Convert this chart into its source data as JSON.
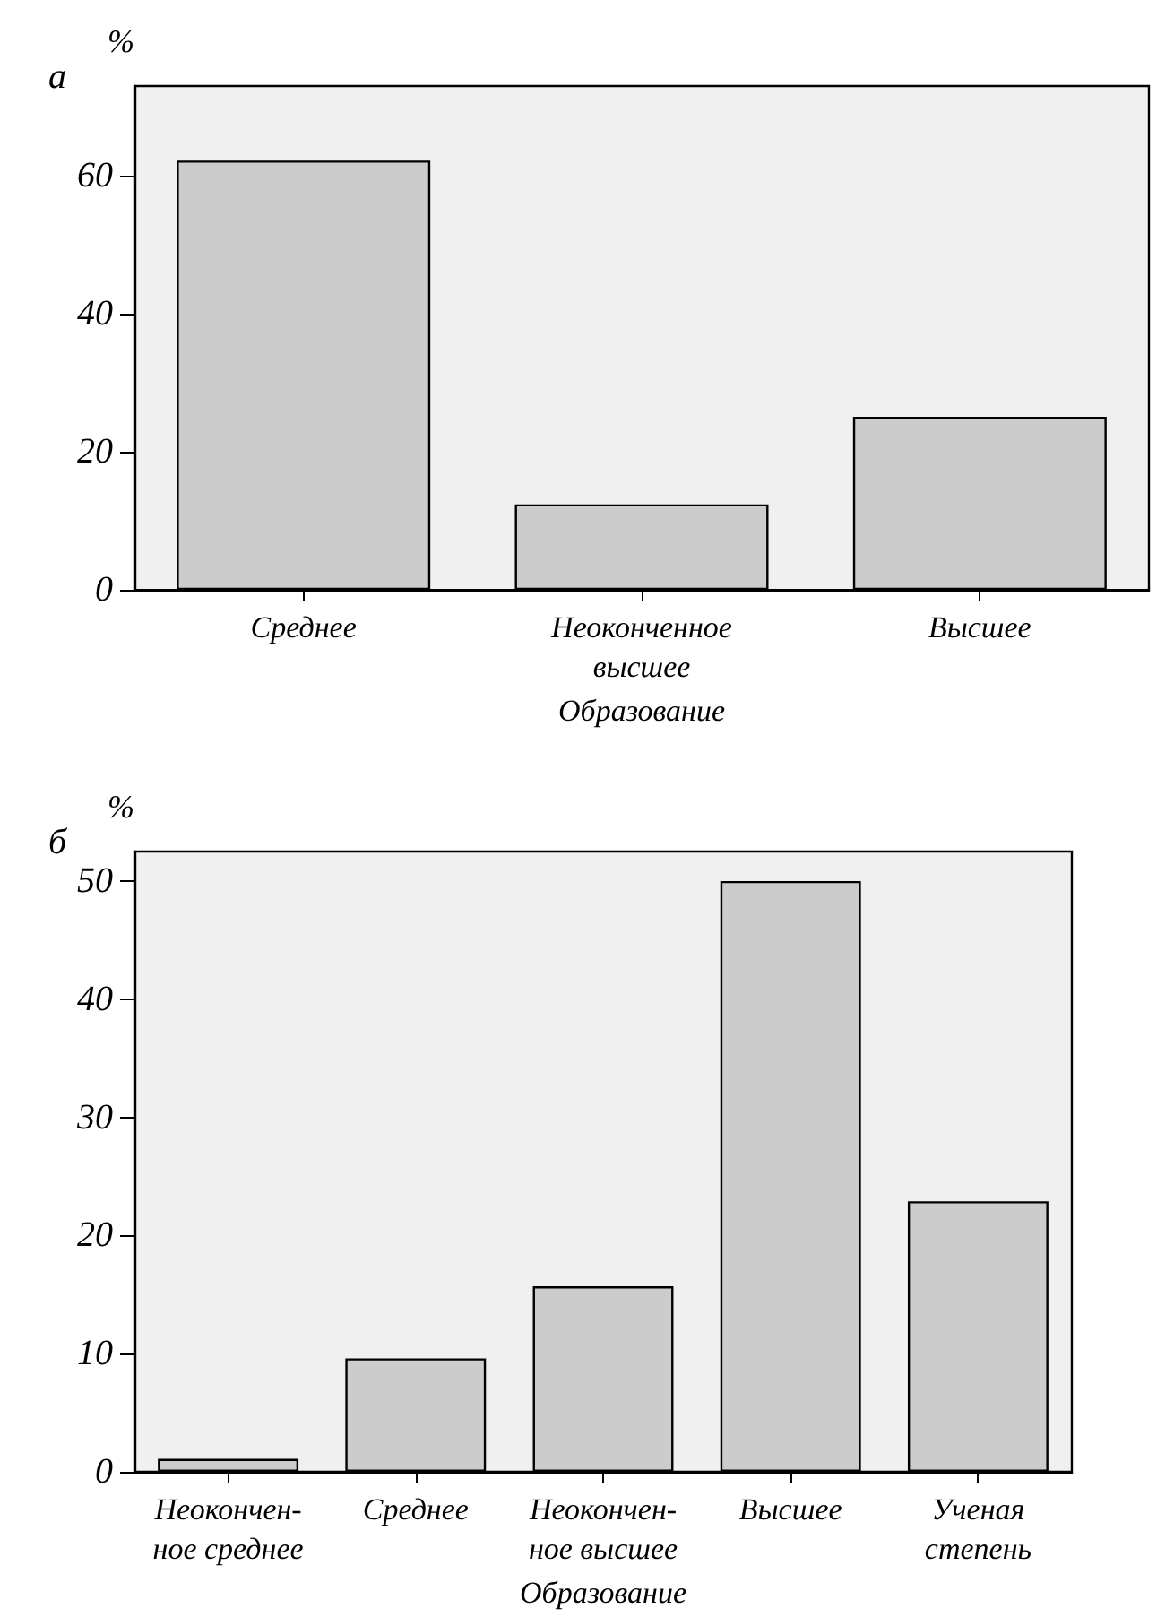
{
  "chart_data": [
    {
      "type": "bar",
      "title": "а",
      "ylabel": "%",
      "xlabel": "Образование",
      "categories": [
        "Среднее",
        "Неоконченное\nвысшее",
        "Высшее"
      ],
      "values": [
        62.2,
        12.4,
        25.1
      ],
      "color": "#cccccc",
      "ylim": [
        0,
        73
      ],
      "yticks": [
        0,
        20,
        40,
        60
      ],
      "grid": false
    },
    {
      "type": "bar",
      "title": "б",
      "ylabel": "%",
      "xlabel": "Образование",
      "categories": [
        "Неокончен-\nное среднее",
        "Среднее",
        "Неокончен-\nное высшее",
        "Высшее",
        "Ученая\nстепень"
      ],
      "values": [
        1.1,
        9.6,
        15.7,
        50,
        22.9
      ],
      "color": "#cccccc",
      "ylim": [
        0,
        52.5
      ],
      "yticks": [
        0,
        10,
        20,
        30,
        40,
        50
      ],
      "grid": false
    }
  ]
}
